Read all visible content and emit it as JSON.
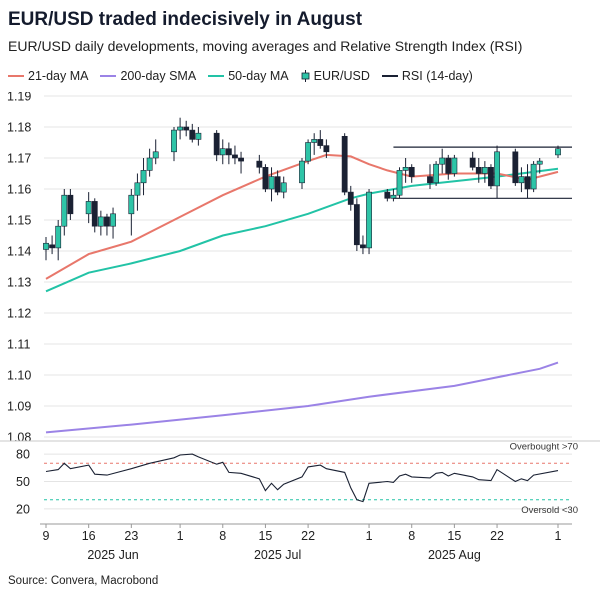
{
  "title": "EUR/USD traded indecisively in August",
  "subtitle": "EUR/USD daily developments, moving averages and Relative Strength Index (RSI)",
  "source": "Source: Convera, Macrobond",
  "chart_data": {
    "type": "candlestick",
    "colors": {
      "ma21": "#e8776b",
      "sma200": "#9b83e6",
      "ma50": "#22c3a6",
      "candle_up": "#2ec4a7",
      "candle_down": "#1a2133",
      "rsi": "#1a2133",
      "overbought": "#e8776b",
      "oversold": "#22c3a6",
      "channel": "#1a2133"
    },
    "legend": [
      {
        "name": "21-day MA",
        "key": "ma21",
        "kind": "line"
      },
      {
        "name": "200-day SMA",
        "key": "sma200",
        "kind": "line"
      },
      {
        "name": "50-day MA",
        "key": "ma50",
        "kind": "line"
      },
      {
        "name": "EUR/USD",
        "key": "candle",
        "kind": "candle"
      },
      {
        "name": "RSI (14-day)",
        "key": "rsi",
        "kind": "line"
      }
    ],
    "price_axis": {
      "ylim": [
        1.08,
        1.19
      ],
      "ticks": [
        "1.08",
        "1.09",
        "1.10",
        "1.11",
        "1.12",
        "1.13",
        "1.14",
        "1.15",
        "1.16",
        "1.17",
        "1.18",
        "1.19"
      ]
    },
    "rsi_axis": {
      "ylim": [
        10,
        90
      ],
      "ticks": [
        "20",
        "50",
        "80"
      ]
    },
    "overbought": {
      "value": 70,
      "label": "Overbought >70"
    },
    "oversold": {
      "value": 30,
      "label": "Oversold <30"
    },
    "x_ticks": [
      "9",
      "16",
      "23",
      "1",
      "8",
      "15",
      "22",
      "1",
      "8",
      "15",
      "22",
      "1"
    ],
    "x_tick_dates": [
      "2025-06-09",
      "2025-06-16",
      "2025-06-23",
      "2025-07-01",
      "2025-07-08",
      "2025-07-15",
      "2025-07-22",
      "2025-08-01",
      "2025-08-08",
      "2025-08-15",
      "2025-08-22",
      "2025-09-01"
    ],
    "month_labels": [
      {
        "label": "2025 Jun",
        "date": "2025-06-20"
      },
      {
        "label": "2025 Jul",
        "date": "2025-07-17"
      },
      {
        "label": "2025 Aug",
        "date": "2025-08-15"
      }
    ],
    "channel": {
      "start": "2025-08-05",
      "end": "2025-09-01",
      "upper": 1.1735,
      "lower": 1.157
    },
    "candles": [
      [
        "2025-06-09",
        1.1405,
        1.1445,
        1.137,
        1.1425
      ],
      [
        "2025-06-10",
        1.142,
        1.145,
        1.139,
        1.141
      ],
      [
        "2025-06-11",
        1.141,
        1.15,
        1.137,
        1.148
      ],
      [
        "2025-06-12",
        1.148,
        1.16,
        1.145,
        1.158
      ],
      [
        "2025-06-13",
        1.158,
        1.16,
        1.15,
        1.152
      ],
      [
        "2025-06-16",
        1.152,
        1.159,
        1.149,
        1.156
      ],
      [
        "2025-06-17",
        1.156,
        1.157,
        1.146,
        1.148
      ],
      [
        "2025-06-18",
        1.148,
        1.153,
        1.145,
        1.151
      ],
      [
        "2025-06-19",
        1.151,
        1.152,
        1.145,
        1.148
      ],
      [
        "2025-06-20",
        1.148,
        1.154,
        1.144,
        1.152
      ],
      [
        "2025-06-23",
        1.152,
        1.16,
        1.145,
        1.158
      ],
      [
        "2025-06-24",
        1.158,
        1.165,
        1.153,
        1.162
      ],
      [
        "2025-06-25",
        1.162,
        1.17,
        1.158,
        1.166
      ],
      [
        "2025-06-26",
        1.166,
        1.173,
        1.164,
        1.17
      ],
      [
        "2025-06-27",
        1.17,
        1.176,
        1.168,
        1.172
      ],
      [
        "2025-06-30",
        1.172,
        1.18,
        1.169,
        1.179
      ],
      [
        "2025-07-01",
        1.179,
        1.183,
        1.176,
        1.18
      ],
      [
        "2025-07-02",
        1.18,
        1.182,
        1.177,
        1.179
      ],
      [
        "2025-07-03",
        1.179,
        1.181,
        1.175,
        1.176
      ],
      [
        "2025-07-04",
        1.176,
        1.18,
        1.174,
        1.178
      ],
      [
        "2025-07-07",
        1.178,
        1.179,
        1.169,
        1.171
      ],
      [
        "2025-07-08",
        1.171,
        1.176,
        1.168,
        1.173
      ],
      [
        "2025-07-09",
        1.173,
        1.175,
        1.168,
        1.171
      ],
      [
        "2025-07-10",
        1.171,
        1.174,
        1.168,
        1.17
      ],
      [
        "2025-07-11",
        1.17,
        1.172,
        1.165,
        1.169
      ],
      [
        "2025-07-14",
        1.169,
        1.171,
        1.165,
        1.167
      ],
      [
        "2025-07-15",
        1.167,
        1.168,
        1.159,
        1.16
      ],
      [
        "2025-07-16",
        1.16,
        1.167,
        1.156,
        1.164
      ],
      [
        "2025-07-17",
        1.164,
        1.166,
        1.158,
        1.159
      ],
      [
        "2025-07-18",
        1.159,
        1.164,
        1.157,
        1.162
      ],
      [
        "2025-07-21",
        1.162,
        1.17,
        1.16,
        1.169
      ],
      [
        "2025-07-22",
        1.169,
        1.176,
        1.168,
        1.175
      ],
      [
        "2025-07-23",
        1.175,
        1.178,
        1.171,
        1.176
      ],
      [
        "2025-07-24",
        1.176,
        1.179,
        1.173,
        1.174
      ],
      [
        "2025-07-25",
        1.174,
        1.176,
        1.17,
        1.172
      ],
      [
        "2025-07-28",
        1.177,
        1.178,
        1.158,
        1.159
      ],
      [
        "2025-07-29",
        1.159,
        1.161,
        1.153,
        1.155
      ],
      [
        "2025-07-30",
        1.155,
        1.157,
        1.14,
        1.142
      ],
      [
        "2025-07-31",
        1.142,
        1.145,
        1.139,
        1.141
      ],
      [
        "2025-08-01",
        1.141,
        1.16,
        1.139,
        1.159
      ],
      [
        "2025-08-04",
        1.159,
        1.16,
        1.156,
        1.157
      ],
      [
        "2025-08-05",
        1.157,
        1.16,
        1.156,
        1.158
      ],
      [
        "2025-08-06",
        1.158,
        1.167,
        1.157,
        1.166
      ],
      [
        "2025-08-07",
        1.166,
        1.17,
        1.162,
        1.167
      ],
      [
        "2025-08-08",
        1.167,
        1.168,
        1.162,
        1.164
      ],
      [
        "2025-08-11",
        1.164,
        1.168,
        1.16,
        1.162
      ],
      [
        "2025-08-12",
        1.162,
        1.169,
        1.161,
        1.168
      ],
      [
        "2025-08-13",
        1.168,
        1.173,
        1.165,
        1.17
      ],
      [
        "2025-08-14",
        1.17,
        1.171,
        1.163,
        1.165
      ],
      [
        "2025-08-15",
        1.165,
        1.171,
        1.164,
        1.17
      ],
      [
        "2025-08-18",
        1.17,
        1.172,
        1.166,
        1.167
      ],
      [
        "2025-08-19",
        1.167,
        1.17,
        1.162,
        1.165
      ],
      [
        "2025-08-20",
        1.165,
        1.169,
        1.162,
        1.167
      ],
      [
        "2025-08-21",
        1.167,
        1.168,
        1.16,
        1.161
      ],
      [
        "2025-08-22",
        1.161,
        1.174,
        1.157,
        1.172
      ],
      [
        "2025-08-25",
        1.172,
        1.173,
        1.161,
        1.162
      ],
      [
        "2025-08-26",
        1.162,
        1.167,
        1.159,
        1.164
      ],
      [
        "2025-08-27",
        1.164,
        1.168,
        1.157,
        1.16
      ],
      [
        "2025-08-28",
        1.16,
        1.169,
        1.159,
        1.168
      ],
      [
        "2025-08-29",
        1.168,
        1.17,
        1.165,
        1.169
      ],
      [
        "2025-09-01",
        1.171,
        1.174,
        1.17,
        1.173
      ]
    ],
    "ma21": [
      [
        "2025-06-09",
        1.131
      ],
      [
        "2025-06-16",
        1.139
      ],
      [
        "2025-06-23",
        1.143
      ],
      [
        "2025-07-01",
        1.151
      ],
      [
        "2025-07-08",
        1.158
      ],
      [
        "2025-07-15",
        1.164
      ],
      [
        "2025-07-22",
        1.169
      ],
      [
        "2025-07-25",
        1.171
      ],
      [
        "2025-07-29",
        1.1705
      ],
      [
        "2025-08-01",
        1.168
      ],
      [
        "2025-08-04",
        1.166
      ],
      [
        "2025-08-08",
        1.164
      ],
      [
        "2025-08-15",
        1.165
      ],
      [
        "2025-08-22",
        1.165
      ],
      [
        "2025-08-27",
        1.163
      ],
      [
        "2025-09-01",
        1.1655
      ]
    ],
    "sma200": [
      [
        "2025-06-09",
        1.0815
      ],
      [
        "2025-06-23",
        1.084
      ],
      [
        "2025-07-08",
        1.087
      ],
      [
        "2025-07-22",
        1.09
      ],
      [
        "2025-08-01",
        1.093
      ],
      [
        "2025-08-15",
        1.0965
      ],
      [
        "2025-08-29",
        1.102
      ],
      [
        "2025-09-01",
        1.104
      ]
    ],
    "ma50": [
      [
        "2025-06-09",
        1.127
      ],
      [
        "2025-06-16",
        1.133
      ],
      [
        "2025-06-23",
        1.136
      ],
      [
        "2025-07-01",
        1.14
      ],
      [
        "2025-07-08",
        1.145
      ],
      [
        "2025-07-15",
        1.148
      ],
      [
        "2025-07-22",
        1.152
      ],
      [
        "2025-07-29",
        1.157
      ],
      [
        "2025-08-01",
        1.1585
      ],
      [
        "2025-08-08",
        1.161
      ],
      [
        "2025-08-15",
        1.1625
      ],
      [
        "2025-08-22",
        1.164
      ],
      [
        "2025-09-01",
        1.1665
      ]
    ],
    "rsi": [
      [
        "2025-06-09",
        61
      ],
      [
        "2025-06-11",
        63
      ],
      [
        "2025-06-12",
        70
      ],
      [
        "2025-06-13",
        64
      ],
      [
        "2025-06-16",
        68
      ],
      [
        "2025-06-17",
        58
      ],
      [
        "2025-06-19",
        57
      ],
      [
        "2025-06-23",
        64
      ],
      [
        "2025-06-26",
        70
      ],
      [
        "2025-06-30",
        76
      ],
      [
        "2025-07-01",
        79
      ],
      [
        "2025-07-03",
        80
      ],
      [
        "2025-07-04",
        77
      ],
      [
        "2025-07-07",
        69
      ],
      [
        "2025-07-08",
        71
      ],
      [
        "2025-07-09",
        60
      ],
      [
        "2025-07-11",
        59
      ],
      [
        "2025-07-14",
        53
      ],
      [
        "2025-07-15",
        40
      ],
      [
        "2025-07-16",
        48
      ],
      [
        "2025-07-17",
        41
      ],
      [
        "2025-07-18",
        47
      ],
      [
        "2025-07-21",
        55
      ],
      [
        "2025-07-22",
        66
      ],
      [
        "2025-07-24",
        68
      ],
      [
        "2025-07-25",
        64
      ],
      [
        "2025-07-28",
        60
      ],
      [
        "2025-07-29",
        43
      ],
      [
        "2025-07-30",
        30
      ],
      [
        "2025-07-31",
        28
      ],
      [
        "2025-08-01",
        48
      ],
      [
        "2025-08-04",
        50
      ],
      [
        "2025-08-05",
        49
      ],
      [
        "2025-08-06",
        56
      ],
      [
        "2025-08-07",
        58
      ],
      [
        "2025-08-08",
        55
      ],
      [
        "2025-08-11",
        54
      ],
      [
        "2025-08-12",
        59
      ],
      [
        "2025-08-13",
        60
      ],
      [
        "2025-08-14",
        56
      ],
      [
        "2025-08-15",
        59
      ],
      [
        "2025-08-18",
        55
      ],
      [
        "2025-08-19",
        52
      ],
      [
        "2025-08-21",
        51
      ],
      [
        "2025-08-22",
        63
      ],
      [
        "2025-08-25",
        50
      ],
      [
        "2025-08-26",
        53
      ],
      [
        "2025-08-27",
        51
      ],
      [
        "2025-08-28",
        57
      ],
      [
        "2025-09-01",
        62
      ]
    ]
  }
}
